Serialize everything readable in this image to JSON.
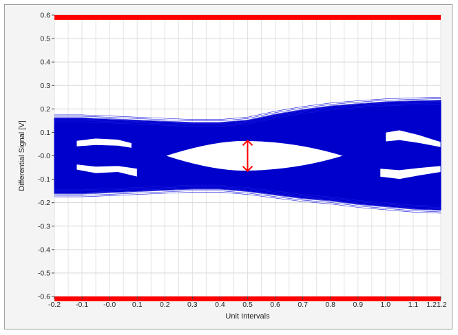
{
  "chart_data": {
    "type": "line",
    "title": "",
    "xlabel": "Unit Intervals",
    "ylabel": "Differential Signal [V]",
    "xlim": [
      -0.2,
      1.2
    ],
    "ylim": [
      -0.6,
      0.6
    ],
    "x_ticks": [
      -0.2,
      -0.1,
      0.0,
      0.1,
      0.2,
      0.3,
      0.4,
      0.5,
      0.6,
      0.7,
      0.8,
      0.9,
      1.0,
      1.1,
      1.2
    ],
    "x_tick_labels": [
      "-0.2",
      "-0.1",
      "-0.0",
      "0.1",
      "0.2",
      "0.3",
      "0.4",
      "0.5",
      "0.6",
      "0.7",
      "0.8",
      "0.9",
      "1.0",
      "1.1",
      "1.21.2"
    ],
    "y_ticks": [
      0.6,
      0.5,
      0.4,
      0.3,
      0.2,
      0.1,
      0.0,
      -0.1,
      -0.2,
      -0.3,
      -0.4,
      -0.5,
      -0.6
    ],
    "y_tick_labels": [
      "0.6",
      "0.5",
      "0.4",
      "0.3",
      "0.2",
      "0.1",
      "-0.0",
      "-0.1",
      "-0.2",
      "-0.3",
      "-0.4",
      "-0.5",
      "-0.6"
    ],
    "grid": true,
    "legend": "none",
    "series": [
      {
        "color": "#0000cc",
        "x": [
          -0.2,
          -0.1,
          0.0,
          0.1,
          0.2,
          0.3,
          0.4,
          0.5,
          0.6,
          0.7,
          0.8,
          0.9,
          1.0,
          1.1,
          1.2
        ],
        "upper": [
          0.16,
          0.16,
          0.155,
          0.15,
          0.145,
          0.14,
          0.14,
          0.15,
          0.175,
          0.195,
          0.21,
          0.22,
          0.228,
          0.232,
          0.235
        ],
        "lower": [
          -0.16,
          -0.16,
          -0.155,
          -0.15,
          -0.145,
          -0.14,
          -0.14,
          -0.15,
          -0.165,
          -0.18,
          -0.19,
          -0.205,
          -0.215,
          -0.225,
          -0.23
        ]
      }
    ],
    "mask_lines": [
      {
        "y": 0.59,
        "color": "#ff0000"
      },
      {
        "y": -0.61,
        "color": "#ff0000"
      }
    ],
    "eye_opening": {
      "x_range": [
        0.2,
        0.85
      ],
      "center_x": 0.5,
      "top_y": 0.065,
      "bottom_y": -0.065
    },
    "marker": {
      "type": "double-arrow",
      "x": 0.5,
      "y_top": 0.065,
      "y_bottom": -0.065,
      "color": "#ff0000"
    }
  }
}
